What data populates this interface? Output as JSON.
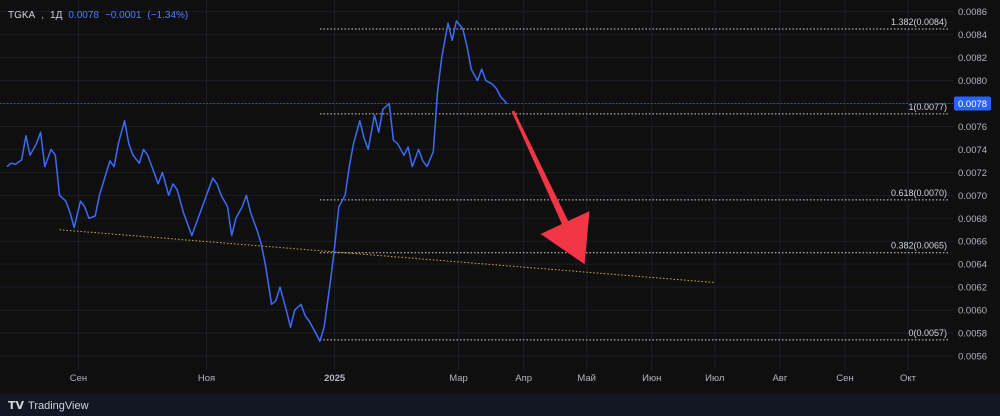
{
  "legend": {
    "symbol": "TGKA",
    "interval": "1Д",
    "price": "0.0078",
    "change": "−0.0001",
    "change_pct": "(−1.34%)"
  },
  "footer": {
    "brand": "TradingView",
    "brand_icon": "tradingview-logo-icon"
  },
  "colors": {
    "background": "#0f0f10",
    "line": "#3d6bf5",
    "grid": "#1c1f26",
    "axis_text": "#b2b5be",
    "fib": "#d1d4dc",
    "trendline": "#c9b038",
    "arrow": "#f23645",
    "price_badge": "#2962ff"
  },
  "chart_data": {
    "type": "line",
    "symbol": "TGKA",
    "x_tick_labels": [
      "Сен",
      "Ноя",
      "2025",
      "Мар",
      "Апр",
      "Май",
      "Июн",
      "Июл",
      "Авг",
      "Сен",
      "Окт"
    ],
    "x_tick_dates": [
      "2024-09-01",
      "2024-11-01",
      "2025-01-01",
      "2025-03-01",
      "2025-04-01",
      "2025-05-01",
      "2025-06-01",
      "2025-07-01",
      "2025-08-01",
      "2025-09-01",
      "2025-10-01"
    ],
    "y_ticks": [
      "0.0056",
      "0.0058",
      "0.0060",
      "0.0062",
      "0.0064",
      "0.0066",
      "0.0068",
      "0.0070",
      "0.0072",
      "0.0074",
      "0.0076",
      "0.0078",
      "0.0080",
      "0.0082",
      "0.0084",
      "0.0086"
    ],
    "ylim": [
      0.00553,
      0.00865
    ],
    "last_price_label": "0.0078",
    "last_price": 0.0078,
    "series": [
      {
        "values": [
          [
            "2024-07-29",
            0.00725
          ],
          [
            "2024-07-31",
            0.00728
          ],
          [
            "2024-08-02",
            0.00727
          ],
          [
            "2024-08-05",
            0.00731
          ],
          [
            "2024-08-07",
            0.00752
          ],
          [
            "2024-08-09",
            0.00735
          ],
          [
            "2024-08-12",
            0.00745
          ],
          [
            "2024-08-14",
            0.00755
          ],
          [
            "2024-08-16",
            0.00725
          ],
          [
            "2024-08-19",
            0.0074
          ],
          [
            "2024-08-21",
            0.00735
          ],
          [
            "2024-08-23",
            0.007
          ],
          [
            "2024-08-26",
            0.00695
          ],
          [
            "2024-08-28",
            0.00685
          ],
          [
            "2024-08-30",
            0.00672
          ],
          [
            "2024-09-02",
            0.00695
          ],
          [
            "2024-09-04",
            0.0069
          ],
          [
            "2024-09-06",
            0.0068
          ],
          [
            "2024-09-09",
            0.00682
          ],
          [
            "2024-09-11",
            0.007
          ],
          [
            "2024-09-13",
            0.00712
          ],
          [
            "2024-09-16",
            0.0073
          ],
          [
            "2024-09-18",
            0.00725
          ],
          [
            "2024-09-20",
            0.00745
          ],
          [
            "2024-09-23",
            0.00765
          ],
          [
            "2024-09-25",
            0.00745
          ],
          [
            "2024-09-27",
            0.00735
          ],
          [
            "2024-09-30",
            0.00728
          ],
          [
            "2024-10-02",
            0.0074
          ],
          [
            "2024-10-04",
            0.00735
          ],
          [
            "2024-10-07",
            0.0072
          ],
          [
            "2024-10-09",
            0.0071
          ],
          [
            "2024-10-11",
            0.0072
          ],
          [
            "2024-10-14",
            0.007
          ],
          [
            "2024-10-16",
            0.0071
          ],
          [
            "2024-10-18",
            0.00705
          ],
          [
            "2024-10-21",
            0.00685
          ],
          [
            "2024-10-23",
            0.00675
          ],
          [
            "2024-10-25",
            0.00665
          ],
          [
            "2024-10-28",
            0.0068
          ],
          [
            "2024-10-30",
            0.0069
          ],
          [
            "2024-11-01",
            0.007
          ],
          [
            "2024-11-04",
            0.00715
          ],
          [
            "2024-11-06",
            0.0071
          ],
          [
            "2024-11-08",
            0.007
          ],
          [
            "2024-11-11",
            0.0069
          ],
          [
            "2024-11-13",
            0.00665
          ],
          [
            "2024-11-15",
            0.0068
          ],
          [
            "2024-11-18",
            0.0069
          ],
          [
            "2024-11-20",
            0.007
          ],
          [
            "2024-11-22",
            0.00685
          ],
          [
            "2024-11-25",
            0.0067
          ],
          [
            "2024-11-27",
            0.00658
          ],
          [
            "2024-11-29",
            0.0064
          ],
          [
            "2024-12-02",
            0.00605
          ],
          [
            "2024-12-04",
            0.00608
          ],
          [
            "2024-12-06",
            0.0062
          ],
          [
            "2024-12-09",
            0.006
          ],
          [
            "2024-12-11",
            0.00585
          ],
          [
            "2024-12-13",
            0.006
          ],
          [
            "2024-12-16",
            0.00605
          ],
          [
            "2024-12-18",
            0.00595
          ],
          [
            "2024-12-20",
            0.0059
          ],
          [
            "2024-12-23",
            0.0058
          ],
          [
            "2024-12-25",
            0.00573
          ],
          [
            "2024-12-27",
            0.00585
          ],
          [
            "2024-12-30",
            0.00625
          ],
          [
            "2025-01-01",
            0.00655
          ],
          [
            "2025-01-03",
            0.0069
          ],
          [
            "2025-01-06",
            0.007
          ],
          [
            "2025-01-08",
            0.00725
          ],
          [
            "2025-01-10",
            0.00745
          ],
          [
            "2025-01-13",
            0.00765
          ],
          [
            "2025-01-15",
            0.0075
          ],
          [
            "2025-01-17",
            0.0074
          ],
          [
            "2025-01-20",
            0.0077
          ],
          [
            "2025-01-22",
            0.00755
          ],
          [
            "2025-01-24",
            0.00775
          ],
          [
            "2025-01-27",
            0.0078
          ],
          [
            "2025-01-29",
            0.00748
          ],
          [
            "2025-01-31",
            0.00745
          ],
          [
            "2025-02-03",
            0.00735
          ],
          [
            "2025-02-05",
            0.00742
          ],
          [
            "2025-02-07",
            0.00725
          ],
          [
            "2025-02-10",
            0.0074
          ],
          [
            "2025-02-12",
            0.0073
          ],
          [
            "2025-02-14",
            0.00725
          ],
          [
            "2025-02-17",
            0.00738
          ],
          [
            "2025-02-19",
            0.0079
          ],
          [
            "2025-02-21",
            0.0082
          ],
          [
            "2025-02-24",
            0.0085
          ],
          [
            "2025-02-26",
            0.00835
          ],
          [
            "2025-02-28",
            0.00852
          ],
          [
            "2025-03-03",
            0.00845
          ],
          [
            "2025-03-05",
            0.0083
          ],
          [
            "2025-03-07",
            0.0081
          ],
          [
            "2025-03-10",
            0.008
          ],
          [
            "2025-03-12",
            0.0081
          ],
          [
            "2025-03-14",
            0.008
          ],
          [
            "2025-03-17",
            0.00797
          ],
          [
            "2025-03-19",
            0.00793
          ],
          [
            "2025-03-21",
            0.00786
          ],
          [
            "2025-03-24",
            0.0078
          ]
        ]
      }
    ],
    "fibonacci_levels": [
      {
        "label": "1.382(0.0084)",
        "value": 0.00845
      },
      {
        "label": "1(0.0077)",
        "value": 0.00771
      },
      {
        "label": "0.618(0.0070)",
        "value": 0.00696
      },
      {
        "label": "0.382(0.0065)",
        "value": 0.0065
      },
      {
        "label": "0(0.0057)",
        "value": 0.00574
      }
    ],
    "fib_start_date": "2024-12-25",
    "trendline": {
      "from": [
        "2024-08-23",
        0.0067
      ],
      "to": [
        "2025-07-01",
        0.00624
      ]
    },
    "arrow": {
      "from": [
        "2025-03-24",
        0.00777
      ],
      "to": [
        "2025-04-30",
        0.0064
      ]
    },
    "grid": true
  }
}
